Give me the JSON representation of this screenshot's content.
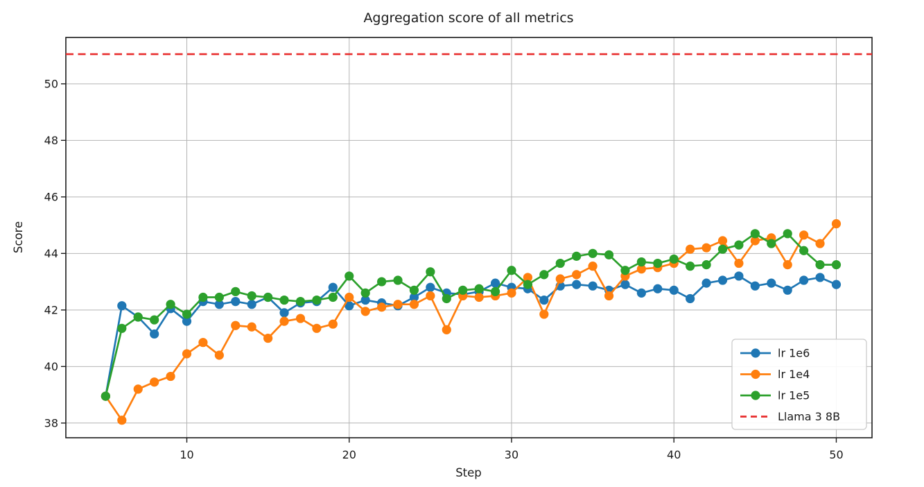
{
  "chart_data": {
    "type": "line",
    "title": "Aggregation score of all metrics",
    "xlabel": "Step",
    "ylabel": "Score",
    "grid": true,
    "legend_position": "lower right",
    "xlim": [
      2.55,
      52.2
    ],
    "ylim": [
      37.48,
      51.64
    ],
    "xticks": [
      10,
      20,
      30,
      40,
      50
    ],
    "yticks": [
      38,
      40,
      42,
      44,
      46,
      48,
      50
    ],
    "x": [
      5,
      6,
      7,
      8,
      9,
      10,
      11,
      12,
      13,
      14,
      15,
      16,
      17,
      18,
      19,
      20,
      21,
      22,
      23,
      24,
      25,
      26,
      27,
      28,
      29,
      30,
      31,
      32,
      33,
      34,
      35,
      36,
      37,
      38,
      39,
      40,
      41,
      42,
      43,
      44,
      45,
      46,
      47,
      48,
      49,
      50
    ],
    "series": [
      {
        "name": "lr 1e6",
        "color": "#1f77b4",
        "marker": "circle",
        "line_style": "solid",
        "values": [
          38.95,
          42.15,
          41.75,
          41.15,
          42.05,
          41.6,
          42.3,
          42.2,
          42.3,
          42.2,
          42.45,
          41.9,
          42.25,
          42.3,
          42.8,
          42.15,
          42.35,
          42.25,
          42.15,
          42.45,
          42.8,
          42.6,
          42.55,
          42.65,
          42.95,
          42.8,
          42.75,
          42.35,
          42.85,
          42.9,
          42.85,
          42.7,
          42.9,
          42.6,
          42.75,
          42.7,
          42.4,
          42.95,
          43.05,
          43.2,
          42.85,
          42.95,
          42.7,
          43.05,
          43.15,
          42.9
        ]
      },
      {
        "name": "lr 1e4",
        "color": "#ff7f0e",
        "marker": "circle",
        "line_style": "solid",
        "values": [
          38.95,
          38.1,
          39.2,
          39.45,
          39.65,
          40.45,
          40.85,
          40.4,
          41.45,
          41.4,
          41.0,
          41.6,
          41.7,
          41.35,
          41.5,
          42.45,
          41.95,
          42.1,
          42.2,
          42.2,
          42.5,
          41.3,
          42.5,
          42.45,
          42.5,
          42.6,
          43.15,
          41.85,
          43.1,
          43.25,
          43.55,
          42.5,
          43.2,
          43.45,
          43.5,
          43.65,
          44.15,
          44.2,
          44.45,
          43.65,
          44.45,
          44.55,
          43.6,
          44.65,
          44.35,
          45.05
        ]
      },
      {
        "name": "lr 1e5",
        "color": "#2ca02c",
        "marker": "circle",
        "line_style": "solid",
        "values": [
          38.95,
          41.35,
          41.75,
          41.65,
          42.2,
          41.85,
          42.45,
          42.45,
          42.65,
          42.5,
          42.45,
          42.35,
          42.3,
          42.35,
          42.45,
          43.2,
          42.6,
          43.0,
          43.05,
          42.7,
          43.35,
          42.4,
          42.7,
          42.75,
          42.65,
          43.4,
          42.9,
          43.25,
          43.65,
          43.9,
          44.0,
          43.95,
          43.4,
          43.7,
          43.65,
          43.8,
          43.55,
          43.6,
          44.15,
          44.3,
          44.7,
          44.35,
          44.7,
          44.1,
          43.6,
          43.6
        ]
      }
    ],
    "baseline": {
      "name": "Llama 3 8B",
      "value": 51.05,
      "color": "#e82c2c",
      "line_style": "dashed"
    },
    "legend_entries": [
      "lr 1e6",
      "lr 1e4",
      "lr 1e5",
      "Llama 3 8B"
    ],
    "colors": {
      "grid": "#b4b4b4",
      "spine": "#1a1a1a",
      "background": "#ffffff",
      "legend_border": "#c9c9c9"
    }
  }
}
